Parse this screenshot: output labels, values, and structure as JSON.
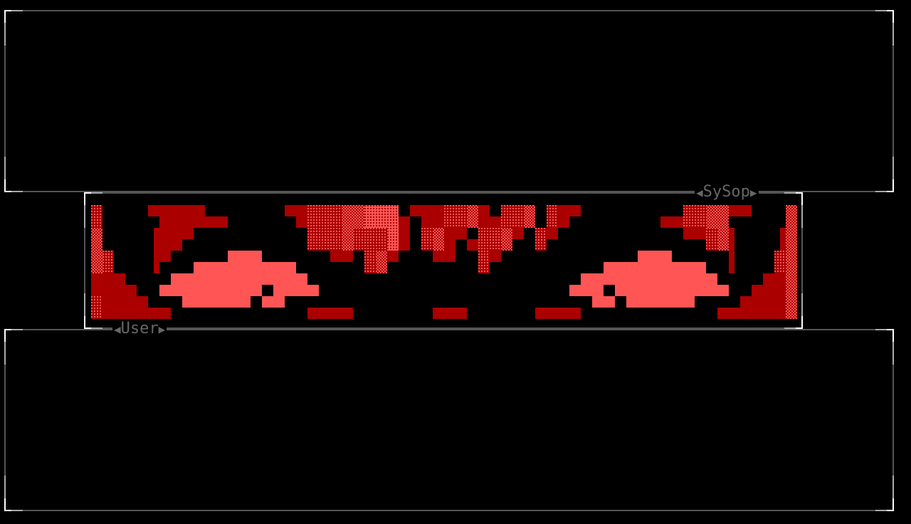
{
  "panels": {
    "sysop": {
      "label": "SySop"
    },
    "user": {
      "label": "User"
    }
  },
  "colors": {
    "background": "#000000",
    "border_bright": "#ffffff",
    "border_mid": "#aaaaaa",
    "border_dim": "#555555",
    "art_dark_red": "#aa0000",
    "art_light_red": "#ff5555",
    "label": "#666666"
  },
  "icons": {
    "left_arrow": "triangle-left-icon",
    "right_arrow": "triangle-right-icon"
  }
}
